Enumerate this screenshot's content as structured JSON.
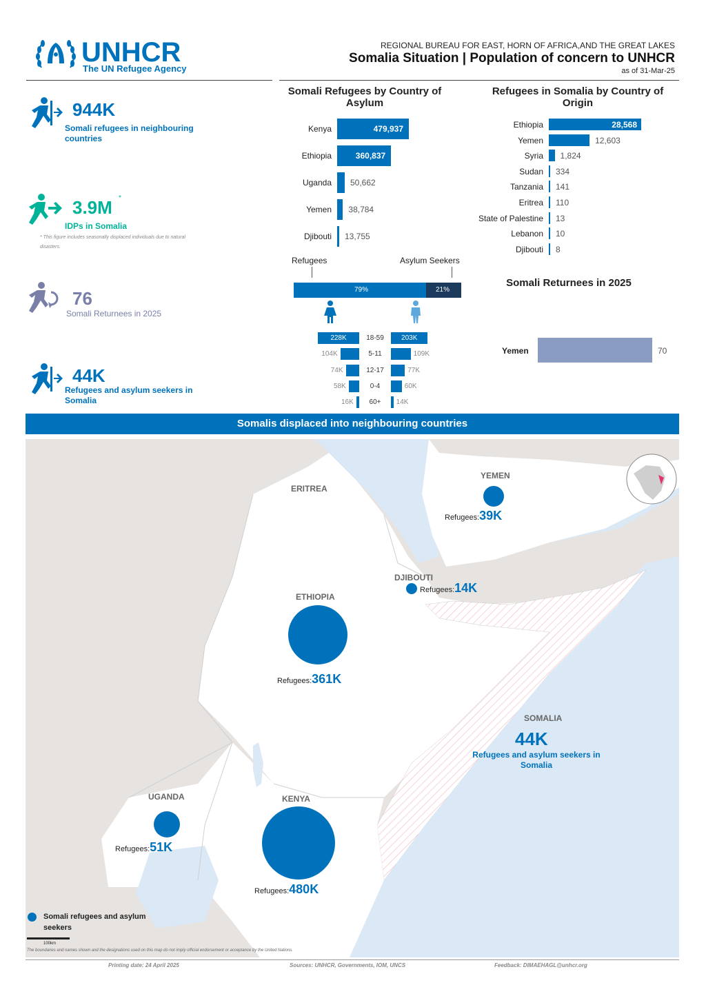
{
  "header": {
    "org_name": "UNHCR",
    "org_sub": "The UN Refugee Agency",
    "bureau": "REGIONAL BUREAU FOR EAST, HORN OF AFRICA,AND THE GREAT LAKES",
    "title": "Somalia Situation | Population of concern to UNHCR",
    "as_of": "as of 31-Mar-25"
  },
  "kpis": [
    {
      "value": "944K",
      "label": "Somali refugees in neighbouring countries",
      "icon": "refugee-running-icon",
      "color": "#0072bc"
    },
    {
      "value": "3.9M",
      "label": "IDPs in Somalia",
      "icon": "idp-running-icon",
      "color": "#00b398",
      "asterisk": "*",
      "note": "* This figure includes seasonally displaced individuals due to natural disasters."
    },
    {
      "value": "76",
      "label": "Somali Returnees in 2025",
      "icon": "returnee-icon",
      "color": "#7a7fa8"
    },
    {
      "value": "44K",
      "label": "Refugees and asylum seekers in Somalia",
      "icon": "refugee-running-icon",
      "color": "#0072bc"
    }
  ],
  "colors": {
    "accent": "#0072bc",
    "idp": "#00b398",
    "returnee": "#7a7fa8",
    "returnee_bar": "#8a9cc2",
    "dark": "#1b3a5c"
  },
  "asylum_chart": {
    "title": "Somali Refugees by Country of Asylum",
    "type": "bar",
    "categories": [
      "Kenya",
      "Ethiopia",
      "Uganda",
      "Yemen",
      "Djibouti"
    ],
    "labels": [
      "479,937",
      "360,837",
      "50,662",
      "38,784",
      "13,755"
    ],
    "values": [
      479937,
      360837,
      50662,
      38784,
      13755
    ]
  },
  "origin_chart": {
    "title": "Refugees in Somalia by Country of Origin",
    "type": "bar",
    "categories": [
      "Ethiopia",
      "Yemen",
      "Syria",
      "Sudan",
      "Tanzania",
      "Eritrea",
      "State of Palestine",
      "Lebanon",
      "Djibouti"
    ],
    "labels": [
      "28,568",
      "12,603",
      "1,824",
      "334",
      "141",
      "110",
      "13",
      "10",
      "8"
    ],
    "values": [
      28568,
      12603,
      1824,
      334,
      141,
      110,
      13,
      10,
      8
    ]
  },
  "split": {
    "refugees_label": "Refugees",
    "asylum_label": "Asylum Seekers",
    "refugees_pct": "79%",
    "asylum_pct": "21%",
    "refugees_share": 0.79
  },
  "pyramid": {
    "groups": [
      "18-59",
      "5-11",
      "12-17",
      "0-4",
      "60+"
    ],
    "female_labels": [
      "228K",
      "104K",
      "74K",
      "58K",
      "16K"
    ],
    "female_values": [
      228,
      104,
      74,
      58,
      16
    ],
    "male_labels": [
      "203K",
      "109K",
      "77K",
      "60K",
      "14K"
    ],
    "male_values": [
      203,
      109,
      77,
      60,
      14
    ]
  },
  "returnees_chart": {
    "title": "Somali Returnees in 2025",
    "type": "bar",
    "categories": [
      "Yemen"
    ],
    "values": [
      70
    ],
    "labels": [
      "70"
    ]
  },
  "banner": "Somalis displaced into neighbouring countries",
  "map": {
    "countries": {
      "yemen": {
        "name": "YEMEN",
        "ref_label": "Refugees:",
        "value": "39K"
      },
      "eritrea": {
        "name": "ERITREA"
      },
      "djibouti": {
        "name": "DJIBOUTI",
        "ref_label": "Refugees:",
        "value": "14K"
      },
      "ethiopia": {
        "name": "ETHIOPIA",
        "ref_label": "Refugees:",
        "value": "361K"
      },
      "somalia": {
        "name": "SOMALIA",
        "value": "44K",
        "label": "Refugees and asylum seekers in Somalia"
      },
      "uganda": {
        "name": "UGANDA",
        "ref_label": "Refugees:",
        "value": "51K"
      },
      "kenya": {
        "name": "KENYA",
        "ref_label": "Refugees:",
        "value": "480K"
      }
    },
    "legend": "Somali refugees and asylum seekers",
    "scale": "100km",
    "disclaimer": "The boundaries and names shown and the designations used on this map do not imply official endorsement or acceptance by the United Nations."
  },
  "footer": {
    "print_date": "Printing date: 24 April 2025",
    "sources": "Sources: UNHCR, Governments, IOM, UNCS",
    "feedback": "Feedback: DIMAEHAGL@unhcr.org"
  }
}
